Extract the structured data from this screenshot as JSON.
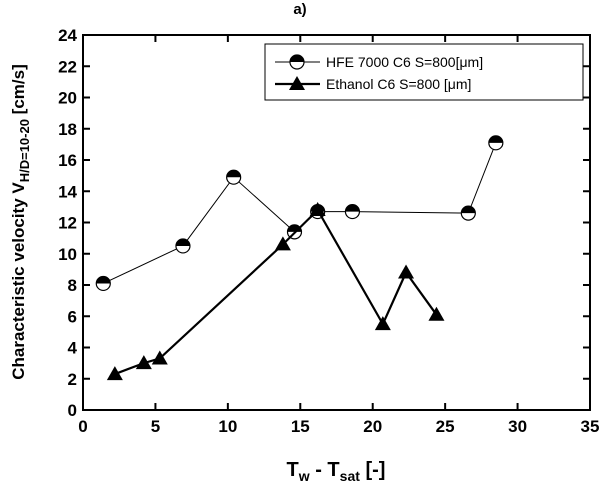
{
  "chart_data": {
    "type": "line",
    "title": "a)",
    "ylabel_parts": [
      "Characteristic velocity V",
      "H/D=10-20",
      " [cm/s]"
    ],
    "xlabel_parts": [
      "T",
      "w",
      " - T",
      "sat",
      " [-]"
    ],
    "xlim": [
      0,
      35
    ],
    "xticks": [
      0,
      5,
      10,
      15,
      20,
      25,
      30,
      35
    ],
    "ylim": [
      0,
      24
    ],
    "yticks": [
      0,
      2,
      4,
      6,
      8,
      10,
      12,
      14,
      16,
      18,
      20,
      22,
      24
    ],
    "legend": "upper right",
    "series": [
      {
        "name": "HFE 7000 C6 S=800[μm]",
        "color": "#000000",
        "marker": "half-circle",
        "x": [
          1.4,
          6.9,
          10.4,
          14.6,
          16.2,
          18.6,
          26.6,
          28.5
        ],
        "values": [
          8.1,
          10.5,
          14.9,
          11.4,
          12.7,
          12.7,
          12.6,
          17.1
        ]
      },
      {
        "name": "Ethanol C6 S=800 [μm]",
        "color": "#000000",
        "marker": "triangle",
        "x": [
          2.2,
          4.2,
          5.3,
          13.8,
          16.2,
          20.7,
          22.3,
          24.4
        ],
        "values": [
          2.3,
          3.0,
          3.3,
          10.6,
          12.8,
          5.5,
          8.8,
          6.1
        ]
      }
    ]
  }
}
